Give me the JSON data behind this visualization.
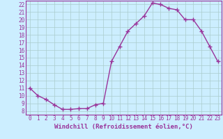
{
  "x": [
    0,
    1,
    2,
    3,
    4,
    5,
    6,
    7,
    8,
    9,
    10,
    11,
    12,
    13,
    14,
    15,
    16,
    17,
    18,
    19,
    20,
    21,
    22,
    23
  ],
  "y": [
    11.0,
    10.0,
    9.5,
    8.8,
    8.2,
    8.2,
    8.3,
    8.3,
    8.8,
    9.0,
    14.5,
    16.5,
    18.5,
    19.5,
    20.5,
    22.2,
    22.0,
    21.5,
    21.3,
    20.0,
    20.0,
    18.5,
    16.5,
    14.5
  ],
  "line_color": "#993399",
  "marker": "+",
  "marker_size": 4,
  "bg_color": "#cceeff",
  "grid_color": "#aacccc",
  "xlabel": "Windchill (Refroidissement éolien,°C)",
  "xlabel_fontsize": 6.5,
  "ylim": [
    7.5,
    22.5
  ],
  "xlim": [
    -0.5,
    23.5
  ],
  "yticks": [
    8,
    9,
    10,
    11,
    12,
    13,
    14,
    15,
    16,
    17,
    18,
    19,
    20,
    21,
    22
  ],
  "xticks": [
    0,
    1,
    2,
    3,
    4,
    5,
    6,
    7,
    8,
    9,
    10,
    11,
    12,
    13,
    14,
    15,
    16,
    17,
    18,
    19,
    20,
    21,
    22,
    23
  ],
  "tick_fontsize": 5.5,
  "spine_color": "#993399",
  "linewidth": 1.0
}
